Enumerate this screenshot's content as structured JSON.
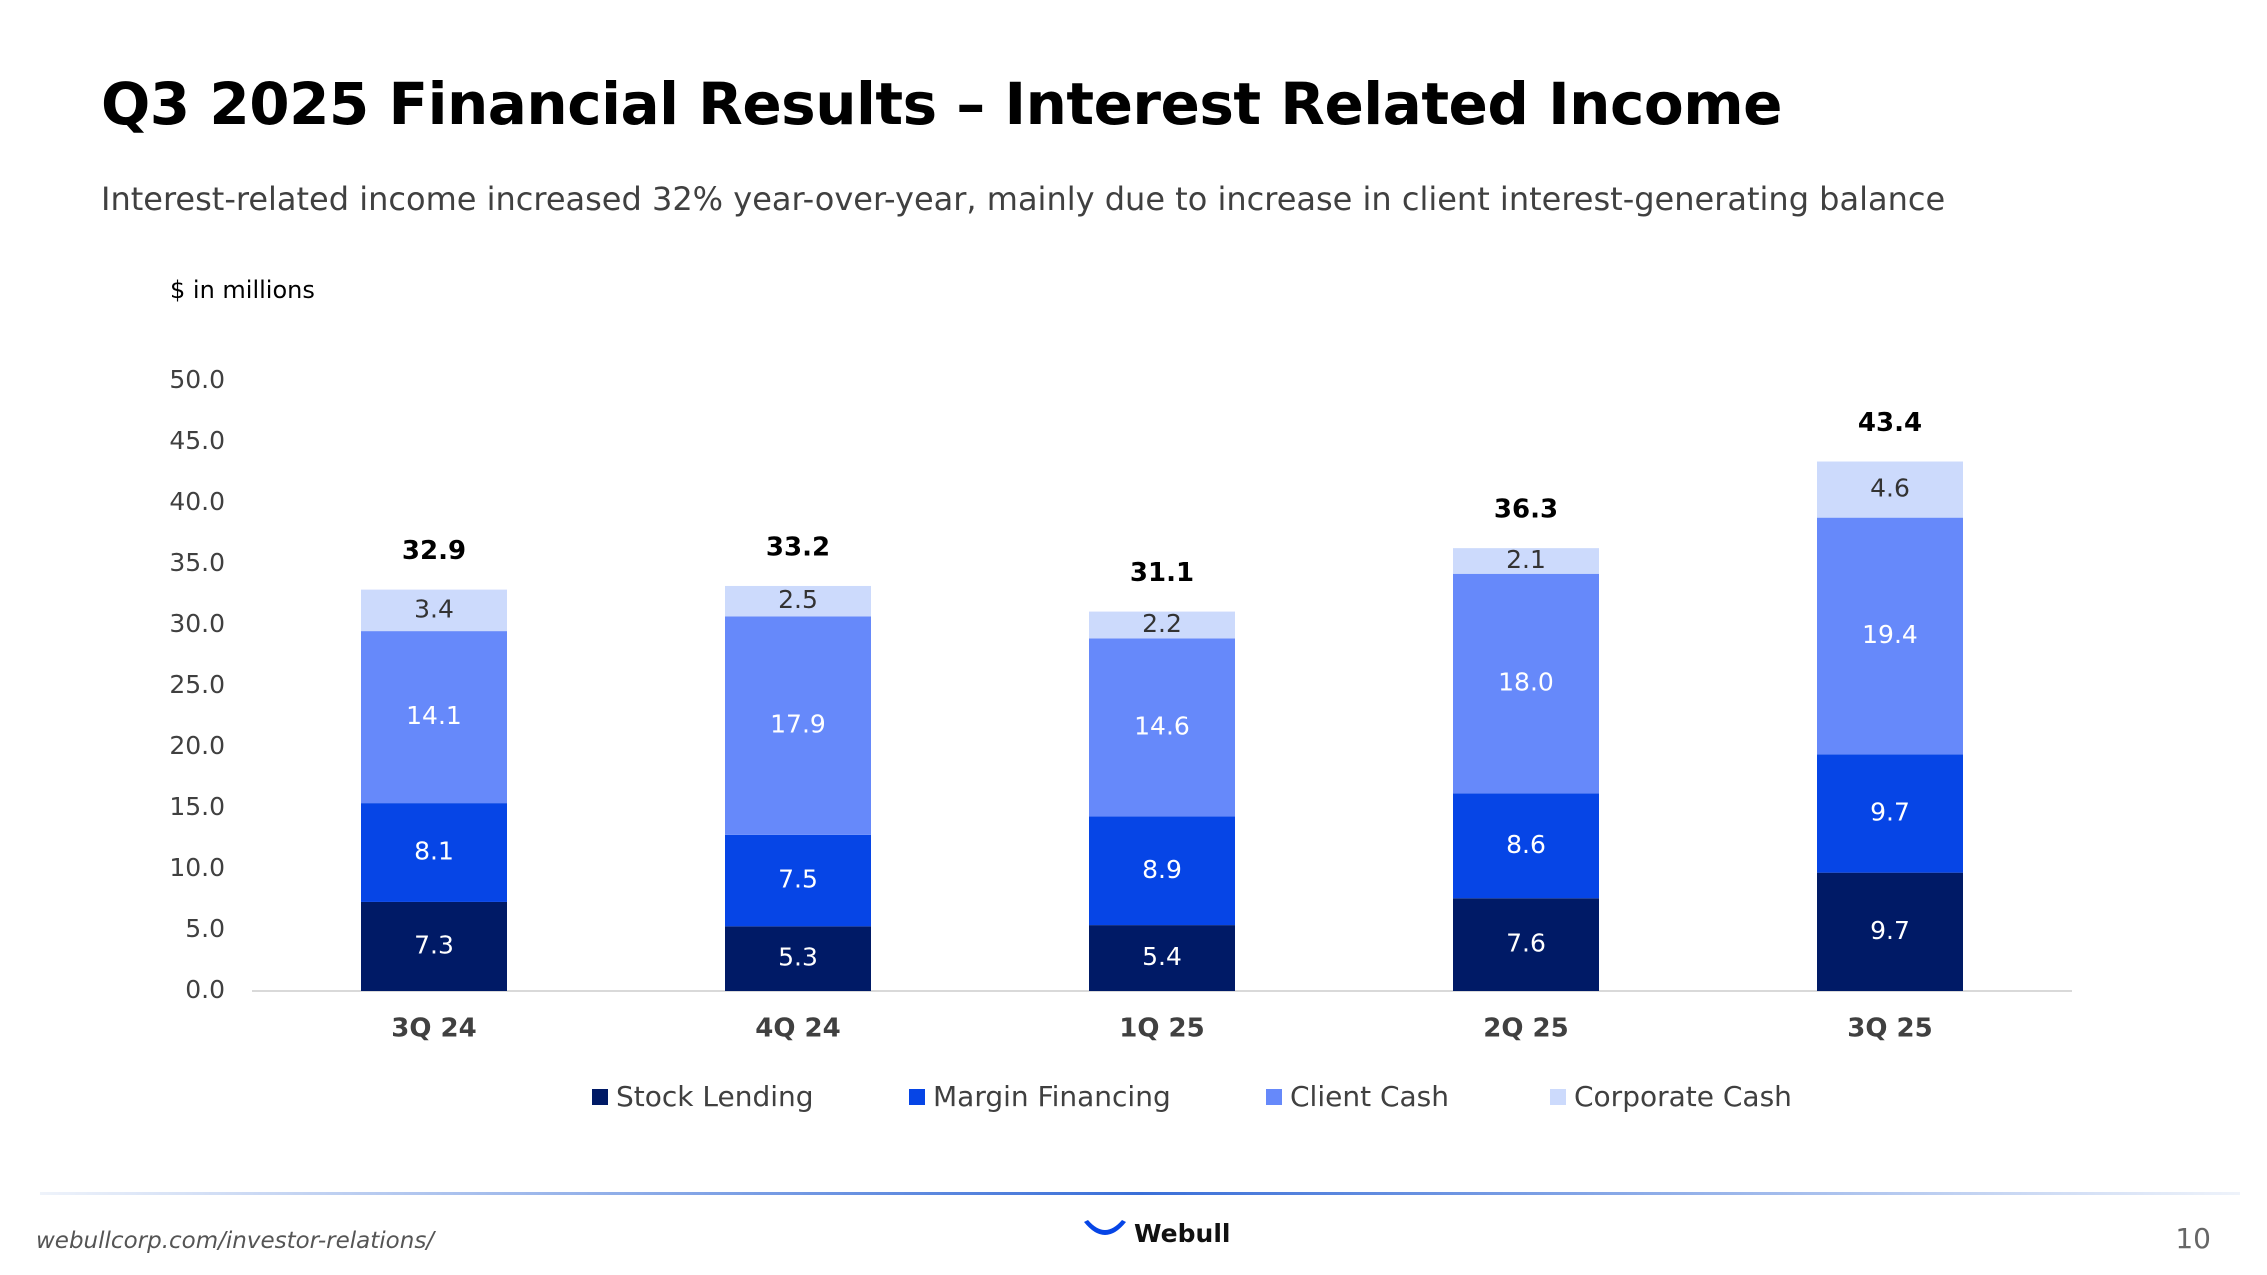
{
  "slide": {
    "title": "Q3 2025 Financial Results – Interest Related Income",
    "subtitle": "Interest-related income increased 32% year-over-year, mainly due to increase in client interest-generating balance",
    "unit_note": "$ in millions"
  },
  "chart_data": {
    "type": "bar",
    "stacked": true,
    "title": "",
    "xlabel": "",
    "ylabel": "",
    "ylim": [
      0,
      50
    ],
    "yticks": [
      "0.0",
      "5.0",
      "10.0",
      "15.0",
      "20.0",
      "25.0",
      "30.0",
      "35.0",
      "40.0",
      "45.0",
      "50.0"
    ],
    "grid": false,
    "legend_position": "bottom",
    "categories": [
      "3Q 24",
      "4Q 24",
      "1Q 25",
      "2Q 25",
      "3Q 25"
    ],
    "totals": [
      "32.9",
      "33.2",
      "31.1",
      "36.3",
      "43.4"
    ],
    "series": [
      {
        "name": "Stock Lending",
        "color": "#001a66",
        "values": [
          7.3,
          5.3,
          5.4,
          7.6,
          9.7
        ],
        "labels": [
          "7.3",
          "5.3",
          "5.4",
          "7.6",
          "9.7"
        ],
        "label_color": "#ffffff"
      },
      {
        "name": "Margin Financing",
        "color": "#0645e6",
        "values": [
          8.1,
          7.5,
          8.9,
          8.6,
          9.7
        ],
        "labels": [
          "8.1",
          "7.5",
          "8.9",
          "8.6",
          "9.7"
        ],
        "label_color": "#ffffff"
      },
      {
        "name": "Client Cash",
        "color": "#6689fa",
        "values": [
          14.1,
          17.9,
          14.6,
          18.0,
          19.4
        ],
        "labels": [
          "14.1",
          "17.9",
          "14.6",
          "18.0",
          "19.4"
        ],
        "label_color": "#ffffff"
      },
      {
        "name": "Corporate Cash",
        "color": "#ccdafc",
        "values": [
          3.4,
          2.5,
          2.2,
          2.1,
          4.6
        ],
        "labels": [
          "3.4",
          "2.5",
          "2.2",
          "2.1",
          "4.6"
        ],
        "label_color": "#333333"
      }
    ]
  },
  "footer": {
    "url": "webullcorp.com/investor-relations/",
    "brand": "Webull",
    "brand_icon": "webull-logo-icon",
    "page_number": "10"
  }
}
